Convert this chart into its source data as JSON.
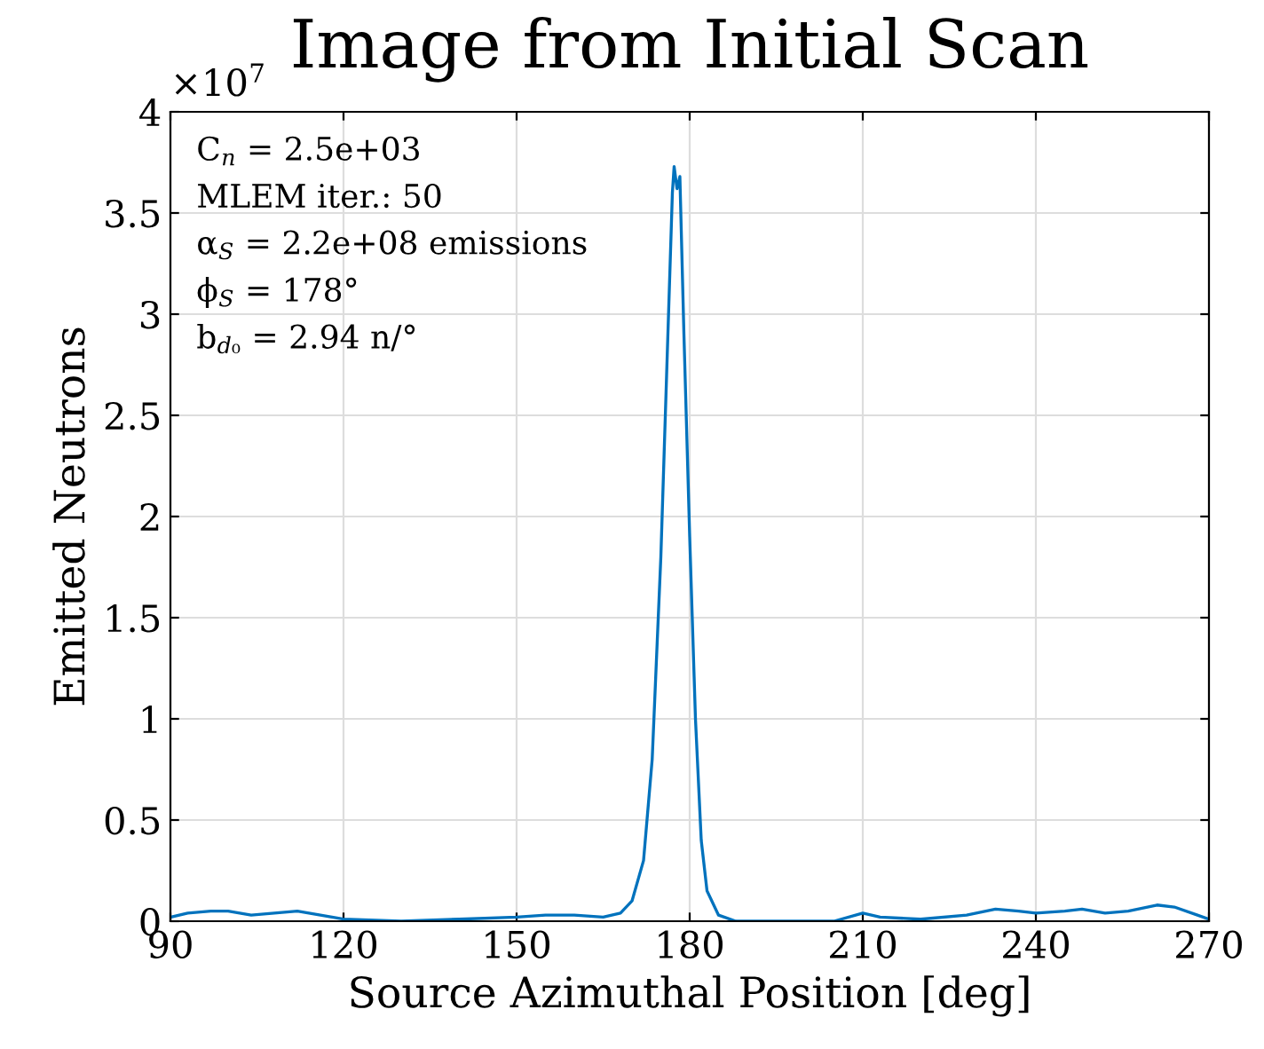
{
  "chart_data": {
    "type": "line",
    "title": "Image from Initial Scan",
    "xlabel": "Source Azimuthal Position [deg]",
    "ylabel": "Emitted Neutrons",
    "annotations": [
      "×10$^{7}$",
      "C$_{n}$ = 2.5e+03",
      "MLEM iter.: 50",
      "α$_{S}$ = 2.2e+08 emissions",
      "ϕ$_{S}$ = 178°",
      "b$_{d₀}$ = 2.94 n/°"
    ],
    "series": [
      {
        "color": "#0072bd",
        "x": [
          90,
          93,
          97,
          100,
          104,
          108,
          112,
          116,
          120,
          130,
          140,
          150,
          155,
          160,
          165,
          168,
          170,
          172,
          173.5,
          175,
          176,
          177,
          177.3,
          177.8,
          178.3,
          179,
          180,
          181,
          182,
          183,
          185,
          188,
          195,
          200,
          205,
          210,
          213,
          220,
          228,
          233,
          237,
          240,
          245,
          248,
          252,
          256,
          261,
          264,
          268,
          270
        ],
        "values": [
          0.02,
          0.04,
          0.05,
          0.05,
          0.03,
          0.04,
          0.05,
          0.03,
          0.01,
          0.0,
          0.01,
          0.02,
          0.03,
          0.03,
          0.02,
          0.04,
          0.1,
          0.3,
          0.8,
          1.8,
          2.7,
          3.6,
          3.73,
          3.62,
          3.68,
          2.9,
          1.9,
          1.0,
          0.4,
          0.15,
          0.03,
          0.0,
          0.0,
          0.0,
          0.0,
          0.04,
          0.02,
          0.01,
          0.03,
          0.06,
          0.05,
          0.04,
          0.05,
          0.06,
          0.04,
          0.05,
          0.08,
          0.07,
          0.03,
          0.01
        ]
      }
    ],
    "xlim": [
      90,
      270
    ],
    "xticks": [
      90,
      120,
      150,
      180,
      210,
      240,
      270
    ],
    "ylim": [
      0,
      4
    ],
    "yticks": [
      0,
      0.5,
      1,
      1.5,
      2,
      2.5,
      3,
      3.5,
      4
    ],
    "grid": true,
    "legend": false
  }
}
